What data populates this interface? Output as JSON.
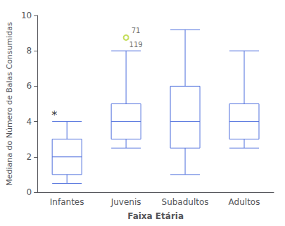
{
  "chart_data": {
    "type": "boxplot",
    "xlabel": "Faixa Etária",
    "ylabel": "Mediana do Número de Balas Consumidas",
    "categories": [
      "Infantes",
      "Juvenis",
      "Subadultos",
      "Adultos"
    ],
    "boxes": [
      {
        "whislo": 0.5,
        "q1": 1.0,
        "median": 2.0,
        "q3": 3.0,
        "whishi": 4.0,
        "fliers": []
      },
      {
        "whislo": 2.5,
        "q1": 3.0,
        "median": 4.0,
        "q3": 5.0,
        "whishi": 8.0,
        "fliers": [
          8.75
        ]
      },
      {
        "whislo": 1.0,
        "q1": 2.5,
        "median": 4.0,
        "q3": 6.0,
        "whishi": 9.2,
        "fliers": []
      },
      {
        "whislo": 2.5,
        "q1": 3.0,
        "median": 4.0,
        "q3": 5.0,
        "whishi": 8.0,
        "fliers": []
      }
    ],
    "annotations": [
      {
        "category": "Infantes",
        "y": 4.1,
        "text": "*"
      }
    ],
    "outlier_labels": [
      {
        "category": "Juvenis",
        "y": 8.75,
        "labels": [
          "71",
          "119"
        ]
      }
    ],
    "ylim": [
      0,
      10
    ],
    "yticks": [
      0,
      2,
      4,
      6,
      8,
      10
    ],
    "grid": false
  }
}
